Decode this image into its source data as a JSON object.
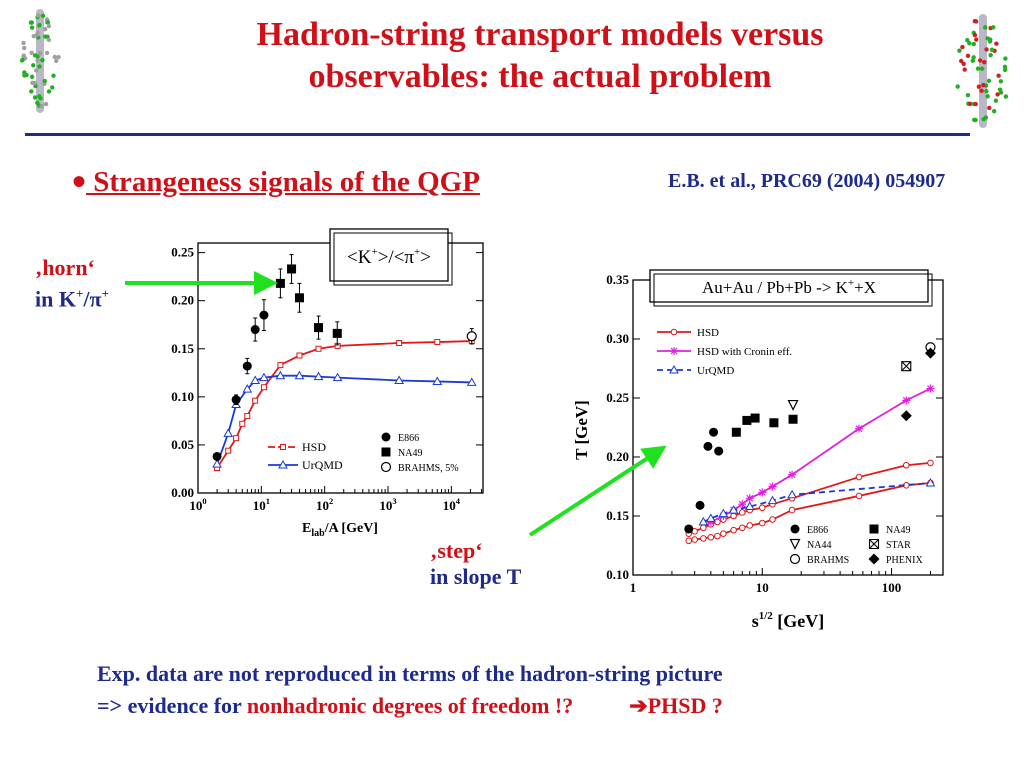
{
  "slide": {
    "title_line1": "Hadron-string transport models versus",
    "title_line2": "observables:  the actual problem",
    "bullet": " Strangeness signals of the QGP",
    "reference": "E.B. et al., PRC69 (2004) 054907",
    "horn_line1": "‚horn‘",
    "horn_line2": "in K",
    "horn_sup1": "+",
    "horn_mid": "/π",
    "horn_sup2": "+",
    "step_line1": "‚step‘",
    "step_line2": "in slope T",
    "concl_line1": "Exp. data are not reproduced in terms of the hadron-string picture",
    "concl_prefix": "=> evidence for ",
    "concl_red": "nonhadronic degrees of freedom !?",
    "concl_arrow": "➔",
    "concl_end": "PHSD ?"
  },
  "colors": {
    "red": "#d01018",
    "blue": "#1e2a8c",
    "hsd": "#e01818",
    "urqmd": "#1a3ad8",
    "cronin": "#e020e0",
    "arrow": "#20e020"
  },
  "chart_data": [
    {
      "type": "line",
      "title": "<K+>/<π+>",
      "xlabel": "Elab/A [GeV]",
      "ylabel": "",
      "xscale": "log",
      "xlim": [
        1,
        31623
      ],
      "ylim": [
        0,
        0.26
      ],
      "xticks": [
        "10^0",
        "10^1",
        "10^2",
        "10^3",
        "10^4"
      ],
      "yticks": [
        "0.00",
        "0.05",
        "0.10",
        "0.15",
        "0.20",
        "0.25"
      ],
      "legend_lines": [
        "HSD",
        "UrQMD"
      ],
      "legend_points": [
        "E866",
        "NA49",
        "BRAHMS, 5%"
      ],
      "series": [
        {
          "name": "HSD",
          "style": "line-open-square",
          "x": [
            2,
            3,
            4,
            5,
            6,
            8,
            11,
            20,
            40,
            80,
            160,
            1500,
            6000,
            21000
          ],
          "y": [
            0.026,
            0.044,
            0.057,
            0.072,
            0.08,
            0.096,
            0.11,
            0.133,
            0.143,
            0.15,
            0.153,
            0.156,
            0.157,
            0.158
          ]
        },
        {
          "name": "UrQMD",
          "style": "line-open-triangle",
          "x": [
            2,
            3,
            4,
            6,
            8,
            11,
            20,
            40,
            80,
            160,
            1500,
            6000,
            21000
          ],
          "y": [
            0.03,
            0.062,
            0.092,
            0.108,
            0.117,
            0.12,
            0.122,
            0.122,
            0.121,
            0.12,
            0.117,
            0.116,
            0.115
          ]
        },
        {
          "name": "E866",
          "style": "filled-circle",
          "x": [
            2,
            4,
            6,
            8,
            11
          ],
          "y": [
            0.038,
            0.097,
            0.132,
            0.17,
            0.185
          ],
          "err": [
            0.003,
            0.005,
            0.008,
            0.012,
            0.016
          ]
        },
        {
          "name": "NA49",
          "style": "filled-square",
          "x": [
            20,
            30,
            40,
            80,
            158
          ],
          "y": [
            0.218,
            0.233,
            0.203,
            0.172,
            0.166
          ],
          "err": [
            0.015,
            0.015,
            0.015,
            0.012,
            0.012
          ]
        },
        {
          "name": "BRAHMS, 5%",
          "style": "open-circle",
          "x": [
            21000
          ],
          "y": [
            0.163
          ],
          "err": [
            0.008
          ]
        }
      ]
    },
    {
      "type": "scatter",
      "title": "Au+Au / Pb+Pb  -> K+X",
      "xlabel": "s1/2 [GeV]",
      "ylabel": "T [GeV]",
      "xscale": "log",
      "xlim": [
        1,
        250
      ],
      "ylim": [
        0.1,
        0.35
      ],
      "xticks": [
        "1",
        "10",
        "100"
      ],
      "yticks": [
        "0.10",
        "0.15",
        "0.20",
        "0.25",
        "0.30",
        "0.35"
      ],
      "legend_lines": [
        "HSD",
        "HSD with Cronin eff.",
        "UrQMD"
      ],
      "legend_points": [
        "E866",
        "NA49",
        "NA44",
        "STAR",
        "BRAHMS",
        "PHENIX"
      ],
      "series": [
        {
          "name": "HSD",
          "style": "line-open-circle-band",
          "x": [
            2.7,
            3.0,
            3.5,
            4.0,
            4.5,
            5.0,
            6.0,
            7.0,
            8.0,
            10,
            12,
            17,
            56,
            130,
            200
          ],
          "y": [
            0.129,
            0.13,
            0.131,
            0.132,
            0.133,
            0.135,
            0.138,
            0.14,
            0.142,
            0.144,
            0.147,
            0.155,
            0.167,
            0.176,
            0.178
          ]
        },
        {
          "name": "HSD upper",
          "style": "line-open-circle-band",
          "x": [
            2.7,
            3.0,
            3.5,
            4.0,
            4.5,
            5.0,
            6.0,
            7.0,
            8.0,
            10,
            12,
            17,
            56,
            130,
            200
          ],
          "y": [
            0.135,
            0.137,
            0.14,
            0.143,
            0.145,
            0.147,
            0.15,
            0.153,
            0.155,
            0.157,
            0.16,
            0.165,
            0.183,
            0.193,
            0.195
          ]
        },
        {
          "name": "HSD with Cronin eff.",
          "style": "line-star",
          "x": [
            4.0,
            5.0,
            6.0,
            7.0,
            8.0,
            10,
            12,
            17,
            56,
            130,
            200
          ],
          "y": [
            0.145,
            0.15,
            0.155,
            0.16,
            0.165,
            0.17,
            0.175,
            0.185,
            0.224,
            0.248,
            0.258
          ]
        },
        {
          "name": "UrQMD",
          "style": "dashed-open-triangle",
          "x": [
            3.5,
            4.0,
            5.0,
            6.0,
            8.0,
            12,
            17,
            200
          ],
          "y": [
            0.145,
            0.148,
            0.152,
            0.155,
            0.158,
            0.163,
            0.168,
            0.178
          ]
        },
        {
          "name": "E866",
          "style": "filled-circle",
          "x": [
            2.7,
            3.3,
            3.8,
            4.2,
            4.6
          ],
          "y": [
            0.139,
            0.159,
            0.209,
            0.221,
            0.205
          ]
        },
        {
          "name": "NA49",
          "style": "filled-square",
          "x": [
            6.3,
            7.6,
            8.8,
            12.3,
            17.3
          ],
          "y": [
            0.221,
            0.231,
            0.233,
            0.229,
            0.232
          ]
        },
        {
          "name": "NA44",
          "style": "open-triangle-down",
          "x": [
            17.3
          ],
          "y": [
            0.244
          ]
        },
        {
          "name": "STAR",
          "style": "boxed-x",
          "x": [
            130
          ],
          "y": [
            0.277
          ]
        },
        {
          "name": "BRAHMS",
          "style": "open-circle",
          "x": [
            200
          ],
          "y": [
            0.293
          ]
        },
        {
          "name": "PHENIX",
          "style": "filled-diamond",
          "x": [
            130,
            200
          ],
          "y": [
            0.235,
            0.288
          ]
        }
      ]
    }
  ]
}
